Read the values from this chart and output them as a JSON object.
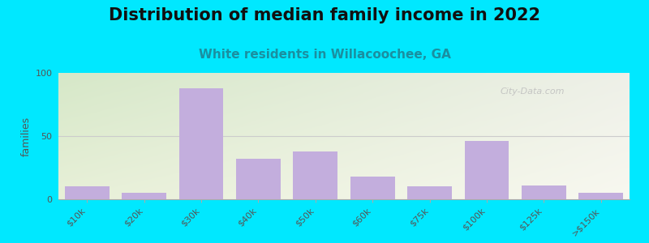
{
  "title": "Distribution of median family income in 2022",
  "subtitle": "White residents in Willacoochee, GA",
  "ylabel": "families",
  "categories": [
    "$10k",
    "$20k",
    "$30k",
    "$40k",
    "$50k",
    "$60k",
    "$75k",
    "$100k",
    "$125k",
    ">$150k"
  ],
  "values": [
    10,
    5,
    88,
    32,
    38,
    18,
    10,
    46,
    11,
    5
  ],
  "bar_color": "#c3aedd",
  "background_outer": "#00e8ff",
  "bg_top_left": "#d6e8c8",
  "bg_bottom_right": "#f8f8f0",
  "grid_color": "#e0e0e0",
  "ylim": [
    0,
    100
  ],
  "yticks": [
    0,
    50,
    100
  ],
  "title_fontsize": 15,
  "subtitle_fontsize": 11,
  "ylabel_fontsize": 9,
  "tick_fontsize": 8,
  "watermark_text": "City-Data.com"
}
